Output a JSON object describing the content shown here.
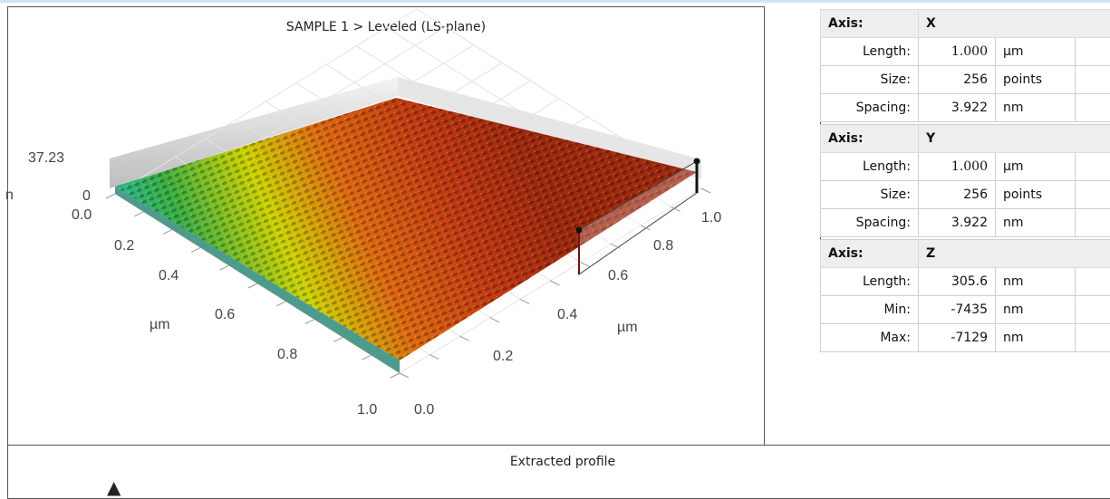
{
  "surface_view": {
    "title": "SAMPLE 1 > Leveled (LS-plane)",
    "z_max_label": "37.23",
    "z_min_label": "0",
    "z_unit_partial": "n",
    "left_axis": {
      "ticks": [
        "0.0",
        "0.2",
        "0.4",
        "0.6",
        "0.8",
        "1.0"
      ],
      "unit": "µm"
    },
    "right_axis": {
      "ticks": [
        "0.0",
        "0.2",
        "0.4",
        "0.6",
        "0.8",
        "1.0"
      ],
      "unit": "µm"
    },
    "colormap": [
      "#12c8c8",
      "#36b34a",
      "#d8d800",
      "#e06010",
      "#a8280c"
    ]
  },
  "info_table": [
    {
      "axis_label": "Axis:",
      "axis": "X",
      "rows": [
        {
          "label": "Length:",
          "value": "1.000",
          "unit": "µm"
        },
        {
          "label": "Size:",
          "value": "256",
          "unit": "points"
        },
        {
          "label": "Spacing:",
          "value": "3.922",
          "unit": "nm"
        }
      ]
    },
    {
      "axis_label": "Axis:",
      "axis": "Y",
      "rows": [
        {
          "label": "Length:",
          "value": "1.000",
          "unit": "µm"
        },
        {
          "label": "Size:",
          "value": "256",
          "unit": "points"
        },
        {
          "label": "Spacing:",
          "value": "3.922",
          "unit": "nm"
        }
      ]
    },
    {
      "axis_label": "Axis:",
      "axis": "Z",
      "rows": [
        {
          "label": "Length:",
          "value": "305.6",
          "unit": "nm"
        },
        {
          "label": "Min:",
          "value": "-7435",
          "unit": "nm"
        },
        {
          "label": "Max:",
          "value": "-7129",
          "unit": "nm"
        }
      ]
    }
  ],
  "profile_panel": {
    "title": "Extracted profile",
    "arrow_glyph": "▲"
  }
}
